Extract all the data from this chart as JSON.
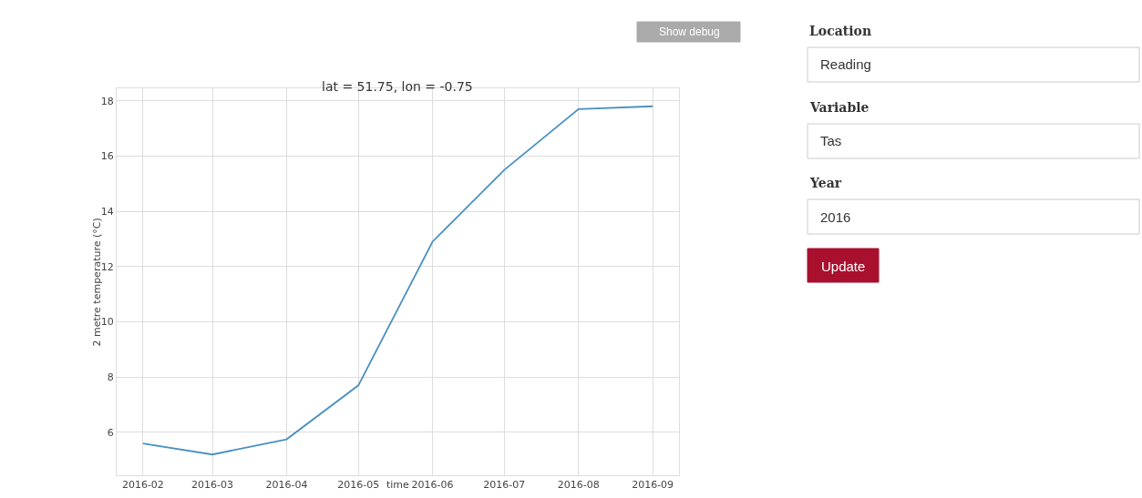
{
  "chart_data": [
    {
      "type": "line",
      "title": "lat = 51.75, lon = -0.75",
      "xlabel": "time",
      "ylabel": "2 metre temperature (°C)",
      "x": [
        "2016-02",
        "2016-03",
        "2016-04",
        "2016-05",
        "2016-06",
        "2016-07",
        "2016-08",
        "2016-09"
      ],
      "series": [
        {
          "color": "#4a90c2",
          "values": [
            5.6,
            5.2,
            5.75,
            7.7,
            12.9,
            15.5,
            17.7,
            17.8
          ]
        }
      ],
      "xlim": [
        "2016-01-21",
        "2016-09-12"
      ],
      "xticks": [
        "2016-02",
        "2016-03",
        "2016-04",
        "2016-05",
        "2016-06",
        "2016-07",
        "2016-08",
        "2016-09"
      ],
      "ylim": [
        4.45,
        18.45
      ],
      "yticks": [
        6,
        8,
        10,
        12,
        14,
        16,
        18
      ],
      "grid": true,
      "marker": "none",
      "line_style": "solid"
    },
    {
      "type": "other",
      "annotations": [
        "Show debug",
        "Location",
        "Reading",
        "Variable",
        "Tas",
        "Year",
        "2016",
        "Update"
      ]
    }
  ]
}
